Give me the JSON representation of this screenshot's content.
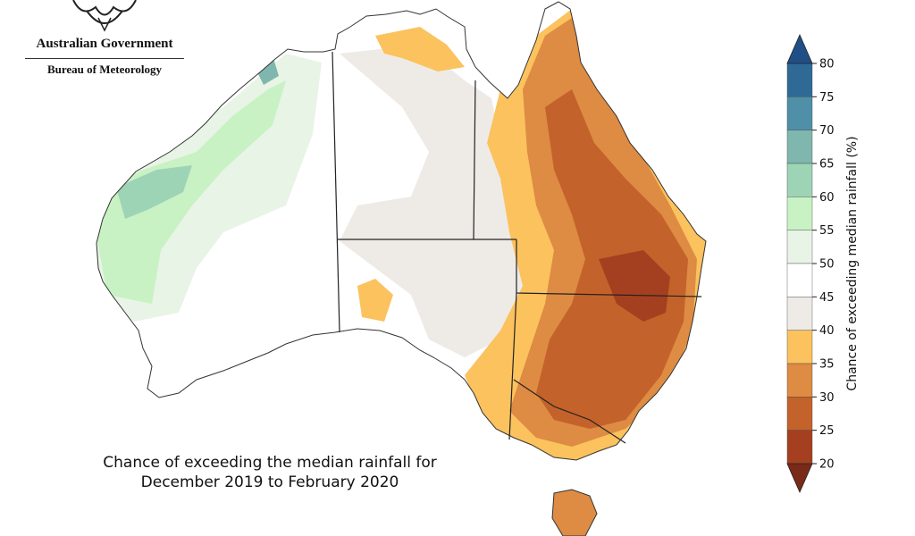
{
  "agency": {
    "line1": "Australian Government",
    "line2": "Bureau of Meteorology",
    "emblem": "coat-of-arms-emblem"
  },
  "caption": {
    "line1": "Chance of exceeding the median rainfall for",
    "line2": "December 2019 to February 2020"
  },
  "colorbar": {
    "title": "Chance of exceeding median rainfall (%)",
    "ticks": [
      "80",
      "75",
      "70",
      "65",
      "60",
      "55",
      "50",
      "45",
      "40",
      "35",
      "30",
      "25",
      "20"
    ],
    "bands": [
      {
        "from": 75,
        "to": 80,
        "color": "#2f6a96"
      },
      {
        "from": 70,
        "to": 75,
        "color": "#4f8fa8"
      },
      {
        "from": 65,
        "to": 70,
        "color": "#7fb7ae"
      },
      {
        "from": 60,
        "to": 65,
        "color": "#9ed4b6"
      },
      {
        "from": 55,
        "to": 60,
        "color": "#c8f2c4"
      },
      {
        "from": 50,
        "to": 55,
        "color": "#e8f4e6"
      },
      {
        "from": 45,
        "to": 50,
        "color": "#ffffff"
      },
      {
        "from": 40,
        "to": 45,
        "color": "#eeebe7"
      },
      {
        "from": 35,
        "to": 40,
        "color": "#fbc25e"
      },
      {
        "from": 30,
        "to": 35,
        "color": "#de8b43"
      },
      {
        "from": 25,
        "to": 30,
        "color": "#c4622b"
      },
      {
        "from": 20,
        "to": 25,
        "color": "#a4401f"
      }
    ],
    "extend_high_color": "#1f4f86",
    "extend_low_color": "#7a2a18"
  },
  "map_colors": {
    "land": "#ffffff",
    "wet_light": "#e8f4e6",
    "wet": "#c8f2c4",
    "wetter": "#9ed4b6",
    "wettest": "#7fb7ae",
    "neutral_dry": "#eeebe7",
    "dry": "#fbc25e",
    "drier": "#de8b43",
    "driest": "#c4622b",
    "extreme_dry": "#a4401f"
  }
}
